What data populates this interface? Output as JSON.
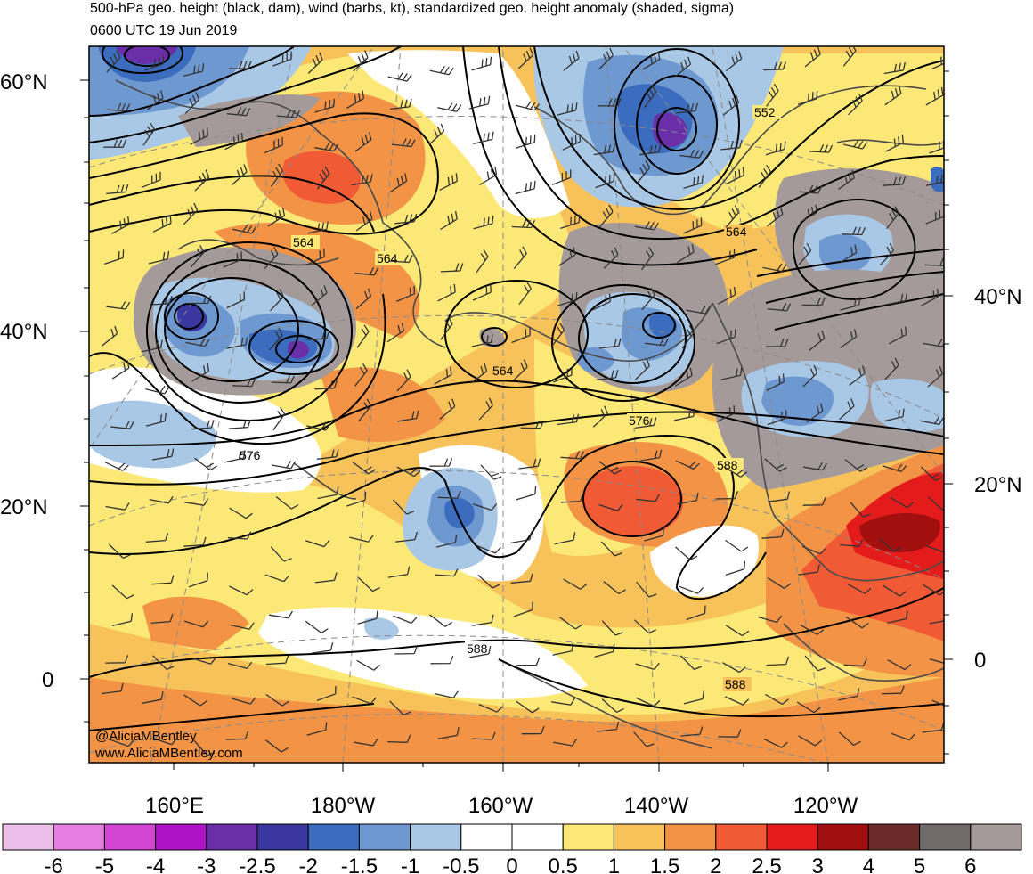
{
  "header": {
    "title": "500-hPa geo. height (black, dam), wind (barbs, kt), standardized geo. height anomaly (shaded, sigma)",
    "valid_time": "0600 UTC 19 Jun 2019"
  },
  "map": {
    "projection": "polar stereographic",
    "lat_labels_left": [
      "60°N",
      "40°N",
      "20°N",
      "0"
    ],
    "lat_labels_right": [
      "40°N",
      "20°N",
      "0"
    ],
    "lon_labels_bottom": [
      "160°E",
      "180°W",
      "160°W",
      "140°W",
      "120°W"
    ],
    "contour_labels": [
      "552",
      "564",
      "564",
      "564",
      "564",
      "576",
      "576",
      "588",
      "588",
      "588"
    ],
    "credits": [
      "@AliciaMBentley",
      "www.AliciaMBentley.com"
    ]
  },
  "colorbar": {
    "label_values": [
      "-6",
      "-5",
      "-4",
      "-3",
      "-2.5",
      "-2",
      "-1.5",
      "-1",
      "-0.5",
      "0",
      "0.5",
      "1",
      "1.5",
      "2",
      "2.5",
      "3",
      "4",
      "5",
      "6"
    ],
    "colors": [
      "#ecbfe8",
      "#e67fe0",
      "#d246d4",
      "#b012c8",
      "#6a2ea8",
      "#3a37a0",
      "#3b6cbe",
      "#6e98d0",
      "#a9c8e6",
      "#ffffff",
      "#ffffff",
      "#fbe876",
      "#f7c25a",
      "#f29346",
      "#f05a35",
      "#e41b1b",
      "#a20f0f",
      "#6b2b28",
      "#706a6a",
      "#a59a9a"
    ]
  }
}
